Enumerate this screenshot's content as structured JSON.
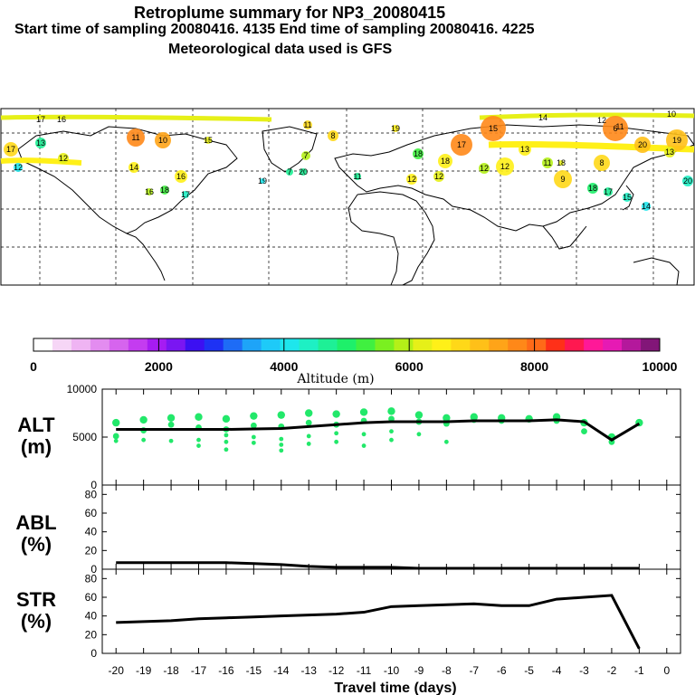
{
  "header": {
    "title": "Retroplume summary for NP3_20080415",
    "line2": "Start time of sampling 20080416.  4135     End time of sampling 20080416.  4225",
    "line3": "Meteorological data used is GFS"
  },
  "colorbar": {
    "title": "Altitude (m)",
    "ticks": [
      "0",
      "2000",
      "4000",
      "6000",
      "8000",
      "10000"
    ],
    "colors": [
      "#ffffff",
      "#f6d6f6",
      "#efb4f3",
      "#e38cf0",
      "#d664ee",
      "#c43cf0",
      "#a61cf2",
      "#7a16f2",
      "#3c10f2",
      "#1e32f4",
      "#1e6cf6",
      "#1ea4f8",
      "#1ecaf8",
      "#1ee6ec",
      "#1ef0c4",
      "#1ef096",
      "#1ef06a",
      "#40f040",
      "#7af020",
      "#b4f018",
      "#e6f018",
      "#fff018",
      "#ffd818",
      "#ffc018",
      "#ffa418",
      "#ff8818",
      "#ff6a18",
      "#ff3018",
      "#ff1850",
      "#ff1898",
      "#e61ab4",
      "#b4189c",
      "#821678"
    ]
  },
  "map": {
    "labels": [
      "17",
      "13",
      "12",
      "12",
      "11",
      "10",
      "14",
      "16",
      "18",
      "17",
      "16",
      "15",
      "11",
      "8",
      "7",
      "7",
      "20",
      "19",
      "18",
      "18",
      "17",
      "15",
      "13",
      "12",
      "12",
      "11",
      "9",
      "8",
      "6",
      "20",
      "19",
      "18",
      "17",
      "15",
      "14",
      "13",
      "12",
      "12",
      "11",
      "20",
      "19",
      "18",
      "17",
      "16",
      "14",
      "12",
      "11",
      "10"
    ]
  },
  "chart_data": [
    {
      "type": "scatter+line",
      "panel": "ALT",
      "ylabel_line1": "ALT",
      "ylabel_line2": "(m)",
      "ylim": [
        0,
        10000
      ],
      "yticks": [
        "0",
        "5000",
        "10000"
      ],
      "x": [
        -20,
        -19,
        -18,
        -17,
        -16,
        -15,
        -14,
        -13,
        -12,
        -11,
        -10,
        -9,
        -8,
        -7,
        -6,
        -5,
        -4,
        -3,
        -2,
        -1
      ],
      "median": [
        5800,
        5800,
        5800,
        5800,
        5800,
        5850,
        5900,
        6100,
        6300,
        6500,
        6600,
        6600,
        6600,
        6700,
        6700,
        6700,
        6800,
        6600,
        4700,
        6400
      ],
      "points": [
        {
          "x": -20,
          "y": [
            6500,
            5100,
            4600
          ]
        },
        {
          "x": -19,
          "y": [
            6800,
            5700,
            4700
          ]
        },
        {
          "x": -18,
          "y": [
            7000,
            6300,
            4600
          ]
        },
        {
          "x": -17,
          "y": [
            7100,
            6000,
            4700,
            4100
          ]
        },
        {
          "x": -16,
          "y": [
            6900,
            5800,
            5200,
            4500,
            3700
          ]
        },
        {
          "x": -15,
          "y": [
            7200,
            6200,
            5000,
            4400
          ]
        },
        {
          "x": -14,
          "y": [
            7300,
            6100,
            4800,
            4200,
            3600
          ]
        },
        {
          "x": -13,
          "y": [
            7500,
            6500,
            5100,
            4300
          ]
        },
        {
          "x": -12,
          "y": [
            7400,
            6300,
            5400,
            4500
          ]
        },
        {
          "x": -11,
          "y": [
            7600,
            6700,
            5300,
            4100
          ]
        },
        {
          "x": -10,
          "y": [
            7700,
            6900,
            5600,
            4700
          ]
        },
        {
          "x": -9,
          "y": [
            7300,
            6600,
            5300
          ]
        },
        {
          "x": -8,
          "y": [
            7000,
            6400,
            4500
          ]
        },
        {
          "x": -7,
          "y": [
            7100,
            6800
          ]
        },
        {
          "x": -6,
          "y": [
            7000,
            6700
          ]
        },
        {
          "x": -5,
          "y": [
            6900
          ]
        },
        {
          "x": -4,
          "y": [
            7100,
            6700
          ]
        },
        {
          "x": -3,
          "y": [
            6500,
            5600
          ]
        },
        {
          "x": -2,
          "y": [
            5000,
            4500
          ]
        },
        {
          "x": -1,
          "y": [
            6500
          ]
        }
      ]
    },
    {
      "type": "line",
      "panel": "ABL",
      "ylabel_line1": "ABL",
      "ylabel_line2": "(%)",
      "ylim": [
        0,
        90
      ],
      "yticks": [
        "0",
        "20",
        "40",
        "60",
        "80"
      ],
      "x": [
        -20,
        -19,
        -18,
        -17,
        -16,
        -15,
        -14,
        -13,
        -12,
        -11,
        -10,
        -9,
        -8,
        -7,
        -6,
        -5,
        -4,
        -3,
        -2,
        -1
      ],
      "values": [
        7,
        7,
        7,
        7,
        7,
        6,
        5,
        3,
        2,
        2,
        2,
        1,
        1,
        1,
        1,
        1,
        1,
        1,
        1,
        1
      ]
    },
    {
      "type": "line",
      "panel": "STR",
      "ylabel_line1": "STR",
      "ylabel_line2": "(%)",
      "ylim": [
        0,
        90
      ],
      "yticks": [
        "0",
        "20",
        "40",
        "60",
        "80"
      ],
      "xlabel": "Travel time (days)",
      "xticks": [
        "-20",
        "-19",
        "-18",
        "-17",
        "-16",
        "-15",
        "-14",
        "-13",
        "-12",
        "-11",
        "-10",
        "-9",
        "-8",
        "-7",
        "-6",
        "-5",
        "-4",
        "-3",
        "-2",
        "-1",
        "0"
      ],
      "x": [
        -20,
        -19,
        -18,
        -17,
        -16,
        -15,
        -14,
        -13,
        -12,
        -11,
        -10,
        -9,
        -8,
        -7,
        -6,
        -5,
        -4,
        -3,
        -2,
        -1
      ],
      "values": [
        33,
        34,
        35,
        37,
        38,
        39,
        40,
        41,
        42,
        44,
        50,
        51,
        52,
        53,
        51,
        51,
        58,
        60,
        62,
        5
      ]
    }
  ]
}
